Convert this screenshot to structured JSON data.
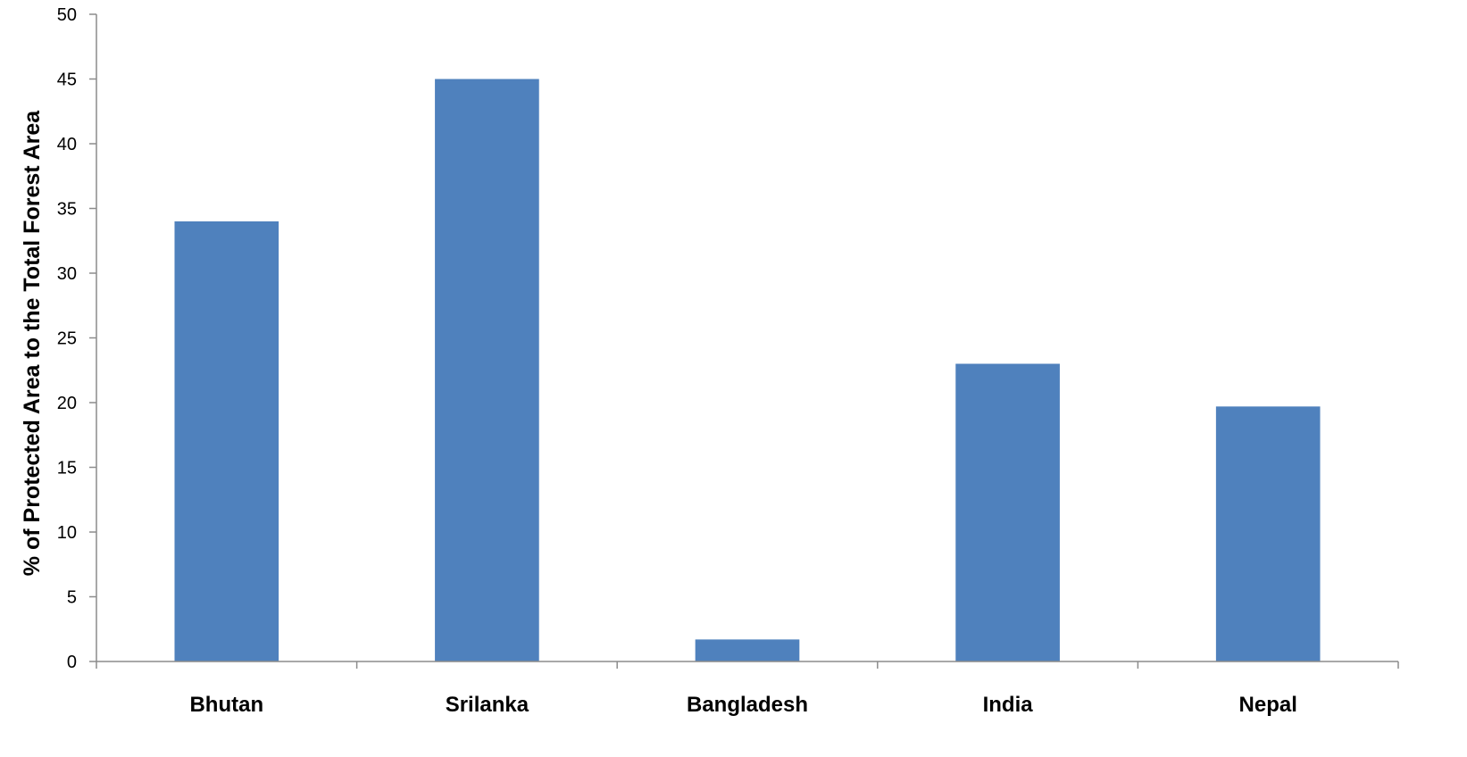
{
  "chart_data": {
    "type": "bar",
    "title": "",
    "xlabel": "",
    "ylabel": "% of Protected Area to the Total Forest Area",
    "categories": [
      "Bhutan",
      "Srilanka",
      "Bangladesh",
      "India",
      "Nepal"
    ],
    "series": [
      {
        "values": [
          34,
          45,
          1.7,
          23,
          19.7
        ]
      }
    ],
    "ylim": [
      0,
      50
    ],
    "yticks": [
      0,
      5,
      10,
      15,
      20,
      25,
      30,
      35,
      40,
      45,
      50
    ],
    "grid": false,
    "legend": "none",
    "bar_color": "#4F81BD",
    "axis_color": "#8C8C8C"
  }
}
